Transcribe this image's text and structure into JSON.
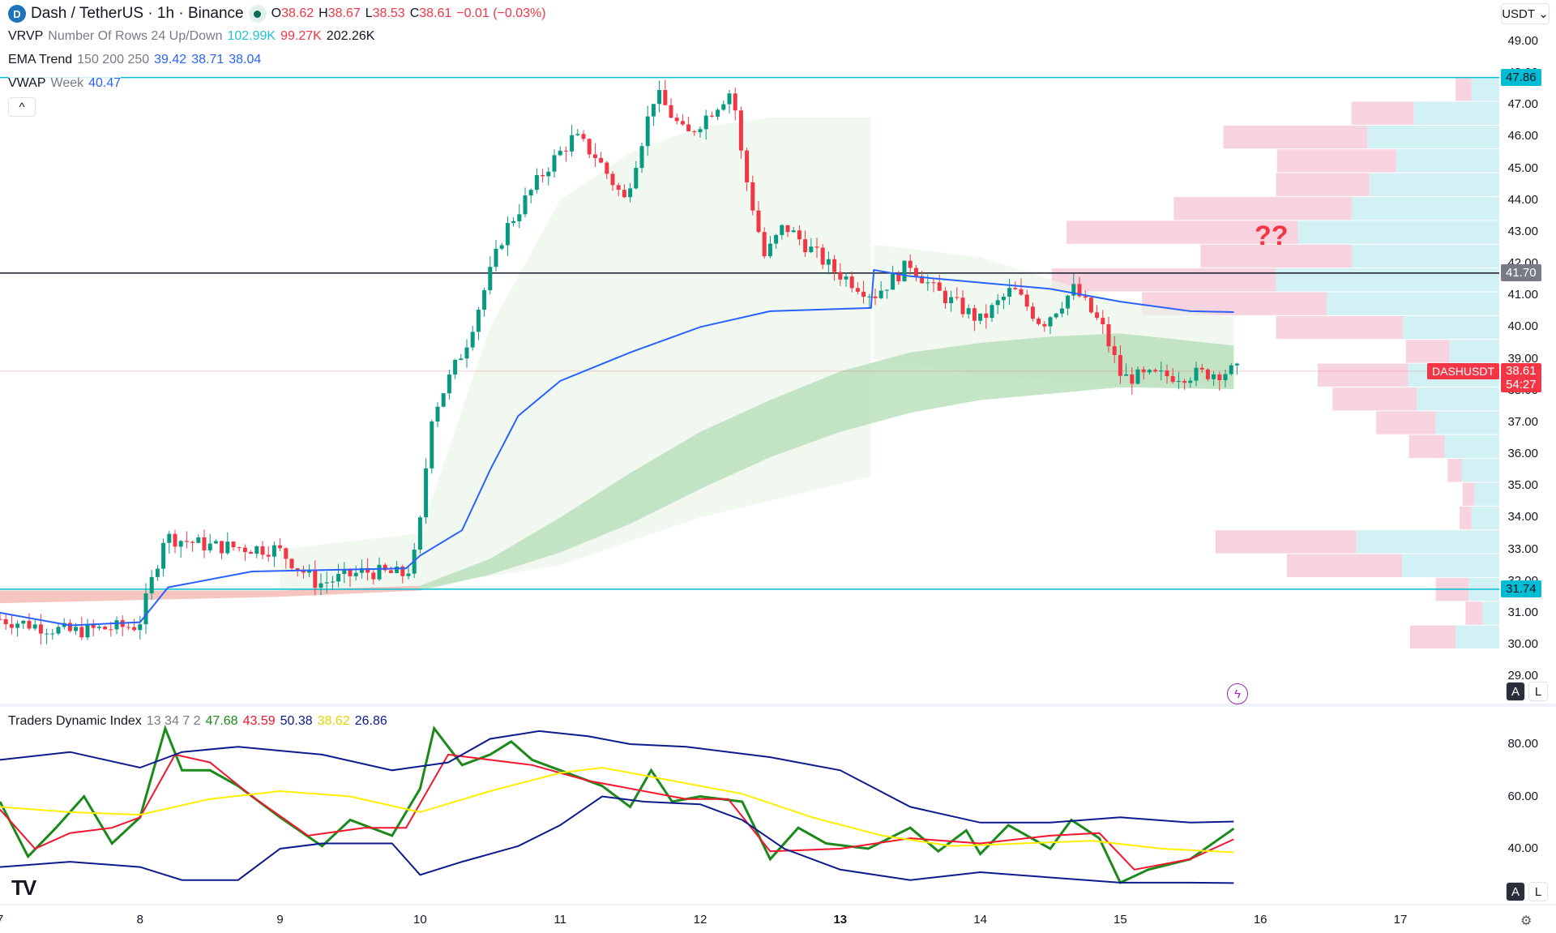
{
  "header": {
    "symbol": "Dash / TetherUS · 1h · Binance",
    "o_label": "O",
    "o": "38.62",
    "h_label": "H",
    "h": "38.67",
    "l_label": "L",
    "l": "38.53",
    "c_label": "C",
    "c": "38.61",
    "change": "−0.01 (−0.03%)"
  },
  "indicators": {
    "vrvp": {
      "name": "VRVP",
      "params": "Number Of Rows 24 Up/Down",
      "up": "102.99K",
      "down": "99.27K",
      "total": "202.26K"
    },
    "ema": {
      "name": "EMA Trend",
      "params": "150 200 250",
      "v1": "39.42",
      "v2": "38.71",
      "v3": "38.04"
    },
    "vwap": {
      "name": "VWAP",
      "params": "Week",
      "value": "40.47"
    },
    "tdi": {
      "name": "Traders Dynamic Index",
      "params": "13 34 7 2",
      "green": "47.68",
      "red": "43.59",
      "upper": "50.38",
      "yellow": "38.62",
      "lower": "26.86"
    }
  },
  "currency": "USDT",
  "annotation": "??",
  "price_tags": {
    "top": "47.86",
    "mid": "41.70",
    "bottom": "31.74",
    "symbol": "DASHUSDT",
    "last": "38.61",
    "countdown": "54:27"
  },
  "buttons": {
    "auto": "A",
    "log": "L",
    "collapse": "^"
  },
  "colors": {
    "up": "#089981",
    "down": "#f23645",
    "cyan": "#00bcd4",
    "vwap": "#2962ff",
    "ema_fill": "#b7dfb9",
    "vp_up": "#d2f1f5",
    "vp_down": "#f7d3e0"
  },
  "chart_data": [
    {
      "type": "candlestick",
      "xlabel": "",
      "ylabel": "",
      "y_ticks": [
        "49.00",
        "48.00",
        "47.00",
        "46.00",
        "45.00",
        "44.00",
        "43.00",
        "42.00",
        "41.00",
        "40.00",
        "39.00",
        "38.00",
        "37.00",
        "36.00",
        "35.00",
        "34.00",
        "33.00",
        "32.00",
        "31.00",
        "30.00",
        "29.00"
      ],
      "x_ticks": [
        "7",
        "8",
        "9",
        "10",
        "11",
        "12",
        "13",
        "14",
        "15",
        "16",
        "17"
      ],
      "ylim": [
        29,
        49
      ],
      "xlim": [
        7,
        17.9
      ],
      "close_path": [
        [
          7,
          30.8
        ],
        [
          7.5,
          30.4
        ],
        [
          7.99,
          30.6
        ],
        [
          8.13,
          32.7
        ],
        [
          8.17,
          33.4
        ],
        [
          8.5,
          33.1
        ],
        [
          8.98,
          33.0
        ],
        [
          9.27,
          31.9
        ],
        [
          9.6,
          32.3
        ],
        [
          9.9,
          32.2
        ],
        [
          9.98,
          33.0
        ],
        [
          10.08,
          37.2
        ],
        [
          10.33,
          39.5
        ],
        [
          10.6,
          43.0
        ],
        [
          10.9,
          45.0
        ],
        [
          11.1,
          46.0
        ],
        [
          11.25,
          45.4
        ],
        [
          11.46,
          44.0
        ],
        [
          11.68,
          47.4
        ],
        [
          11.9,
          46.0
        ],
        [
          12.23,
          47.5
        ],
        [
          12.3,
          45.2
        ],
        [
          12.46,
          42.2
        ],
        [
          12.6,
          43.2
        ],
        [
          12.95,
          41.8
        ],
        [
          13.24,
          41.0
        ],
        [
          13.5,
          42.0
        ],
        [
          13.66,
          41.2
        ],
        [
          14.0,
          40.2
        ],
        [
          14.23,
          41.2
        ],
        [
          14.44,
          40.1
        ],
        [
          14.67,
          41.2
        ],
        [
          14.87,
          40.0
        ],
        [
          15.01,
          38.4
        ],
        [
          15.5,
          38.5
        ],
        [
          15.81,
          38.61
        ]
      ],
      "vwap": [
        [
          7,
          31.0
        ],
        [
          7.5,
          30.6
        ],
        [
          8.0,
          30.7
        ],
        [
          8.2,
          31.8
        ],
        [
          8.8,
          32.3
        ],
        [
          9.9,
          32.4
        ],
        [
          10.0,
          32.8
        ],
        [
          10.3,
          33.6
        ],
        [
          10.5,
          35.5
        ],
        [
          10.7,
          37.2
        ],
        [
          11.0,
          38.3
        ],
        [
          11.5,
          39.2
        ],
        [
          12.0,
          40.0
        ],
        [
          12.5,
          40.5
        ],
        [
          13.22,
          40.6
        ],
        [
          13.24,
          41.8
        ],
        [
          13.5,
          41.6
        ],
        [
          14.0,
          41.4
        ],
        [
          14.5,
          41.2
        ],
        [
          15.0,
          40.8
        ],
        [
          15.5,
          40.5
        ],
        [
          15.81,
          40.47
        ]
      ],
      "ema_ribbon_top": [
        [
          7,
          31.7
        ],
        [
          9,
          31.7
        ],
        [
          10,
          31.85
        ],
        [
          10.5,
          32.7
        ],
        [
          11,
          34.0
        ],
        [
          11.5,
          35.4
        ],
        [
          12,
          36.7
        ],
        [
          12.5,
          37.7
        ],
        [
          13,
          38.6
        ],
        [
          13.5,
          39.2
        ],
        [
          14,
          39.5
        ],
        [
          14.5,
          39.7
        ],
        [
          15,
          39.8
        ],
        [
          15.81,
          39.42
        ]
      ],
      "ema_ribbon_bottom": [
        [
          7,
          31.3
        ],
        [
          9,
          31.5
        ],
        [
          10,
          31.7
        ],
        [
          10.5,
          32.2
        ],
        [
          11,
          32.9
        ],
        [
          11.5,
          33.8
        ],
        [
          12,
          34.9
        ],
        [
          12.5,
          35.9
        ],
        [
          13,
          36.7
        ],
        [
          13.5,
          37.3
        ],
        [
          14,
          37.7
        ],
        [
          14.5,
          37.9
        ],
        [
          15,
          38.1
        ],
        [
          15.81,
          38.04
        ]
      ],
      "horizontal_lines": [
        47.86,
        41.7,
        31.74,
        38.61
      ],
      "volume_profile": {
        "top": 47.86,
        "row_height": 0.75,
        "up": [
          28,
          86,
          133,
          104,
          131,
          149,
          203,
          149,
          225,
          174,
          97,
          50,
          92,
          83,
          64,
          55,
          38,
          25,
          28,
          144,
          98,
          31,
          17,
          44
        ],
        "down": [
          16,
          63,
          145,
          120,
          94,
          179,
          233,
          152,
          226,
          186,
          128,
          44,
          91,
          85,
          60,
          36,
          14,
          12,
          12,
          142,
          116,
          33,
          17,
          46
        ]
      }
    },
    {
      "type": "line",
      "name": "Traders Dynamic Index",
      "y_ticks": [
        "80.00",
        "60.00",
        "40.00"
      ],
      "ylim": [
        20,
        90
      ],
      "series": [
        {
          "color": "#1b8a1b",
          "values": [
            [
              7,
              58
            ],
            [
              7.2,
              37
            ],
            [
              7.4,
              48
            ],
            [
              7.6,
              60
            ],
            [
              7.8,
              42
            ],
            [
              8.0,
              52
            ],
            [
              8.18,
              86
            ],
            [
              8.3,
              70
            ],
            [
              8.5,
              70
            ],
            [
              8.7,
              64
            ],
            [
              9.0,
              52
            ],
            [
              9.3,
              41
            ],
            [
              9.5,
              51
            ],
            [
              9.8,
              45
            ],
            [
              10.0,
              63
            ],
            [
              10.1,
              86
            ],
            [
              10.3,
              72
            ],
            [
              10.5,
              76
            ],
            [
              10.65,
              81
            ],
            [
              10.8,
              74
            ],
            [
              11.0,
              70
            ],
            [
              11.3,
              64
            ],
            [
              11.5,
              56
            ],
            [
              11.65,
              70
            ],
            [
              11.8,
              58
            ],
            [
              12.0,
              60
            ],
            [
              12.3,
              58
            ],
            [
              12.5,
              36
            ],
            [
              12.7,
              48
            ],
            [
              12.9,
              42
            ],
            [
              13.2,
              40
            ],
            [
              13.5,
              48
            ],
            [
              13.7,
              39
            ],
            [
              13.9,
              47
            ],
            [
              14.0,
              38
            ],
            [
              14.2,
              49
            ],
            [
              14.5,
              40
            ],
            [
              14.65,
              51
            ],
            [
              14.85,
              44
            ],
            [
              15.0,
              27
            ],
            [
              15.2,
              32
            ],
            [
              15.5,
              36
            ],
            [
              15.81,
              47.68
            ]
          ]
        },
        {
          "color": "#f2162d",
          "values": [
            [
              7,
              55
            ],
            [
              7.25,
              40
            ],
            [
              7.5,
              46
            ],
            [
              7.8,
              48
            ],
            [
              8.0,
              52
            ],
            [
              8.25,
              76
            ],
            [
              8.5,
              73
            ],
            [
              8.8,
              60
            ],
            [
              9.2,
              45
            ],
            [
              9.6,
              48
            ],
            [
              9.9,
              48
            ],
            [
              10.2,
              76
            ],
            [
              10.5,
              74
            ],
            [
              10.8,
              72
            ],
            [
              11.2,
              66
            ],
            [
              11.5,
              63
            ],
            [
              11.9,
              59
            ],
            [
              12.2,
              59
            ],
            [
              12.5,
              39
            ],
            [
              13.0,
              40
            ],
            [
              13.5,
              44
            ],
            [
              14.0,
              42
            ],
            [
              14.5,
              45
            ],
            [
              14.85,
              46
            ],
            [
              15.1,
              32
            ],
            [
              15.5,
              36
            ],
            [
              15.81,
              43.59
            ]
          ]
        },
        {
          "color": "#ffee00",
          "values": [
            [
              7,
              56
            ],
            [
              7.5,
              54
            ],
            [
              8.0,
              53
            ],
            [
              8.5,
              59
            ],
            [
              9.0,
              62
            ],
            [
              9.5,
              60
            ],
            [
              10.0,
              54
            ],
            [
              10.5,
              62
            ],
            [
              11.0,
              69
            ],
            [
              11.3,
              71
            ],
            [
              11.8,
              66
            ],
            [
              12.3,
              61
            ],
            [
              12.8,
              52
            ],
            [
              13.3,
              45
            ],
            [
              13.8,
              41
            ],
            [
              14.3,
              42
            ],
            [
              14.8,
              43
            ],
            [
              15.3,
              40
            ],
            [
              15.81,
              38.62
            ]
          ]
        },
        {
          "color": "#0c1a8c",
          "values": [
            [
              7,
              74
            ],
            [
              7.5,
              77
            ],
            [
              8.0,
              71
            ],
            [
              8.3,
              77
            ],
            [
              8.7,
              79
            ],
            [
              9.3,
              76
            ],
            [
              9.8,
              70
            ],
            [
              10.2,
              73
            ],
            [
              10.5,
              82
            ],
            [
              10.85,
              85
            ],
            [
              11.2,
              83
            ],
            [
              11.5,
              80
            ],
            [
              11.9,
              79
            ],
            [
              12.5,
              75
            ],
            [
              13.0,
              70
            ],
            [
              13.5,
              56
            ],
            [
              14.0,
              50
            ],
            [
              14.5,
              50
            ],
            [
              15.0,
              52
            ],
            [
              15.5,
              50
            ],
            [
              15.81,
              50.38
            ]
          ]
        },
        {
          "color": "#0c1a8c",
          "values": [
            [
              7,
              33
            ],
            [
              7.5,
              35
            ],
            [
              8.0,
              33
            ],
            [
              8.3,
              28
            ],
            [
              8.7,
              28
            ],
            [
              9.0,
              40
            ],
            [
              9.3,
              42
            ],
            [
              9.8,
              42
            ],
            [
              10.0,
              30
            ],
            [
              10.3,
              35
            ],
            [
              10.7,
              41
            ],
            [
              11.0,
              49
            ],
            [
              11.3,
              60
            ],
            [
              11.6,
              58
            ],
            [
              12.0,
              57
            ],
            [
              12.3,
              51
            ],
            [
              12.6,
              40
            ],
            [
              13.0,
              32
            ],
            [
              13.5,
              28
            ],
            [
              14.0,
              31
            ],
            [
              14.5,
              29
            ],
            [
              15.0,
              27
            ],
            [
              15.5,
              27
            ],
            [
              15.81,
              26.86
            ]
          ]
        }
      ]
    }
  ]
}
